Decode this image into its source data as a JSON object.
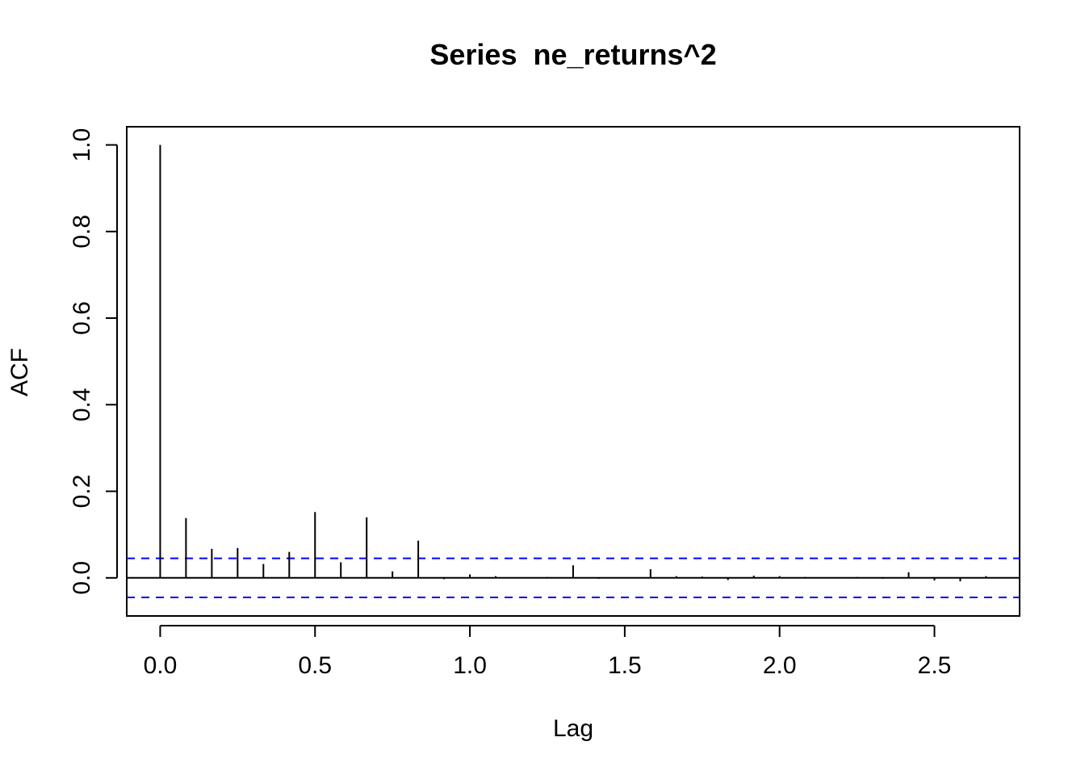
{
  "chart_data": {
    "type": "bar",
    "subtype": "acf-stem",
    "title": "Series  ne_returns^2",
    "xlabel": "Lag",
    "ylabel": "ACF",
    "xlim": [
      -0.108,
      2.775
    ],
    "ylim": [
      -0.088,
      1.042
    ],
    "grid": false,
    "legend": "none",
    "x_ticks": [
      0,
      0.5,
      1,
      1.5,
      2,
      2.5
    ],
    "x_tick_labels": [
      "0.0",
      "0.5",
      "1.0",
      "1.5",
      "2.0",
      "2.5"
    ],
    "y_ticks": [
      0,
      0.2,
      0.4,
      0.6,
      0.8,
      1
    ],
    "y_tick_labels": [
      "0.0",
      "0.2",
      "0.4",
      "0.6",
      "0.8",
      "1.0"
    ],
    "confidence_bounds": [
      0.045,
      -0.045
    ],
    "colors": {
      "stems": "#000000",
      "zero_line": "#000000",
      "confidence": "#0000ff"
    },
    "lags": [
      0,
      0.0833,
      0.1667,
      0.25,
      0.3333,
      0.4167,
      0.5,
      0.5833,
      0.6667,
      0.75,
      0.8333,
      0.9167,
      1.0,
      1.0833,
      1.1667,
      1.25,
      1.3333,
      1.4167,
      1.5,
      1.5833,
      1.6667,
      1.75,
      1.8333,
      1.9167,
      2.0,
      2.0833,
      2.1667,
      2.25,
      2.3333,
      2.4167,
      2.5,
      2.5833,
      2.6667
    ],
    "acf": [
      1.0,
      0.138,
      0.067,
      0.069,
      0.032,
      0.06,
      0.152,
      0.036,
      0.14,
      0.015,
      0.086,
      -0.003,
      0.008,
      0.004,
      0.001,
      0.002,
      0.029,
      -0.002,
      0.001,
      0.02,
      0.004,
      0.003,
      -0.005,
      0.005,
      0.004,
      0.002,
      0.001,
      0.002,
      -0.002,
      0.013,
      -0.006,
      -0.008,
      0.004
    ]
  }
}
